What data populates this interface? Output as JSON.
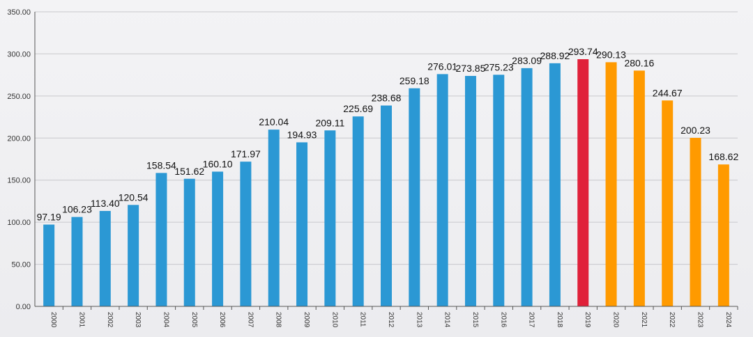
{
  "chart_data": {
    "type": "bar",
    "title": "",
    "xlabel": "",
    "ylabel": "",
    "ylim": [
      0,
      350
    ],
    "yticks": [
      "0.00",
      "50.00",
      "100.00",
      "150.00",
      "200.00",
      "250.00",
      "300.00",
      "350.00"
    ],
    "grid": true,
    "categories": [
      "2000",
      "2001",
      "2002",
      "2003",
      "2004",
      "2005",
      "2006",
      "2007",
      "2008",
      "2009",
      "2010",
      "2011",
      "2012",
      "2013",
      "2014",
      "2015",
      "2016",
      "2017",
      "2018",
      "2019",
      "2020",
      "2021",
      "2022",
      "2023",
      "2024"
    ],
    "values": [
      97.19,
      106.23,
      113.4,
      120.54,
      158.54,
      151.62,
      160.1,
      171.97,
      210.04,
      194.93,
      209.11,
      225.69,
      238.68,
      259.18,
      276.01,
      273.85,
      275.23,
      283.09,
      288.92,
      293.74,
      290.13,
      280.16,
      244.67,
      200.23,
      168.62
    ],
    "value_labels": [
      "97.19",
      "106.23",
      "113.40",
      "120.54",
      "158.54",
      "151.62",
      "160.10",
      "171.97",
      "210.04",
      "194.93",
      "209.11",
      "225.69",
      "238.68",
      "259.18",
      "276.01",
      "273.85",
      "275.23",
      "283.09",
      "288.92",
      "293.74",
      "290.13",
      "280.16",
      "244.67",
      "200.23",
      "168.62"
    ],
    "bar_colors": [
      "#2b98d4",
      "#2b98d4",
      "#2b98d4",
      "#2b98d4",
      "#2b98d4",
      "#2b98d4",
      "#2b98d4",
      "#2b98d4",
      "#2b98d4",
      "#2b98d4",
      "#2b98d4",
      "#2b98d4",
      "#2b98d4",
      "#2b98d4",
      "#2b98d4",
      "#2b98d4",
      "#2b98d4",
      "#2b98d4",
      "#2b98d4",
      "#e0213a",
      "#ff9a00",
      "#ff9a00",
      "#ff9a00",
      "#ff9a00",
      "#ff9a00"
    ],
    "gridline_color": "#c8c8cc",
    "axis_color": "#555555"
  }
}
